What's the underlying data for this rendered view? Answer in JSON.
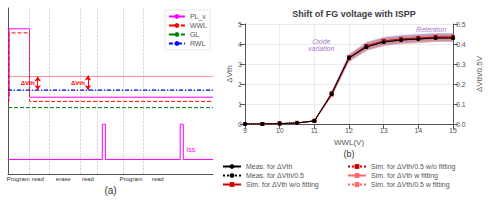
{
  "chart_data": [
    {
      "type": "line",
      "subtitle": "(a)",
      "xlim": [
        0,
        10
      ],
      "ylim": [
        -3.2,
        4.8
      ],
      "tick_labels": false,
      "grid": false,
      "legend": "upper right",
      "series": [
        {
          "name": "PL_v",
          "color": "magenta",
          "line_style": "solid",
          "x": [
            0,
            0.05,
            0.05,
            1.05,
            1.05,
            10
          ],
          "values": [
            0.5,
            0.5,
            3.8,
            3.8,
            0.5,
            0.5
          ]
        },
        {
          "name": "WWL",
          "color": "red",
          "line_style": "dashed",
          "x": [
            0,
            0.05,
            0.05,
            1.05,
            1.05,
            10
          ],
          "values": [
            0.3,
            0.3,
            3.6,
            3.6,
            0.3,
            0.3
          ]
        },
        {
          "name": "GL",
          "color": "green",
          "line_style": "dashed",
          "x": [
            0,
            10
          ],
          "values": [
            0.0,
            0.0
          ]
        },
        {
          "name": "RWL",
          "color": "blue",
          "line_style": "dashdot",
          "x": [
            0,
            10
          ],
          "values": [
            0.85,
            0.85
          ]
        },
        {
          "color": "magenta",
          "line_style": "solid",
          "x": [
            0,
            4.6,
            4.6,
            4.75,
            4.75,
            8.4,
            8.4,
            8.55,
            8.55,
            10
          ],
          "values": [
            -2.5,
            -2.5,
            -0.8,
            -0.8,
            -2.5,
            -2.5,
            -0.8,
            -0.8,
            -2.5,
            -2.5
          ]
        }
      ],
      "hlines": [
        {
          "value": 1.5,
          "color": "red",
          "line_style": "solid"
        },
        {
          "value": 0.85,
          "color": "green",
          "line_style": "dashed"
        },
        {
          "value": 0.85,
          "color": "blue",
          "line_style": "dashdot"
        }
      ],
      "vlines": [
        1.05,
        2.0,
        3.5,
        4.35,
        5.6,
        6.6
      ],
      "arrows": [
        {
          "x": 1.45,
          "y": [
            0.85,
            1.5
          ],
          "text": "ΔVth",
          "color": "red"
        },
        {
          "x": 3.9,
          "y": [
            0.85,
            1.55
          ],
          "text": "ΔVth",
          "color": "red"
        }
      ],
      "annotations": [
        {
          "text": "Program",
          "x": 0.5
        },
        {
          "text": "read",
          "x": 1.45
        },
        {
          "text": "erase",
          "x": 2.7
        },
        {
          "text": "read",
          "x": 3.9
        },
        {
          "text": "Program",
          "x": 6.0
        },
        {
          "text": "read",
          "x": 7.3
        },
        {
          "text": "Iss",
          "x": 8.7,
          "y": -2.2,
          "color": "magenta"
        }
      ]
    },
    {
      "type": "line",
      "title": "Shift of FG voltage with ISPP",
      "subtitle": "(b)",
      "xlabel": "WWL(V)",
      "ylabel": "ΔVth",
      "y2label": "ΔVth/0.5V",
      "x": [
        9,
        9.5,
        10,
        10.5,
        11,
        11.5,
        12,
        12.5,
        13,
        13.5,
        14,
        14.5,
        15
      ],
      "xlim": [
        9,
        15
      ],
      "xticks": [
        9,
        10,
        11,
        12,
        13,
        14,
        15
      ],
      "ylim": [
        0,
        5
      ],
      "yticks": [
        0,
        1,
        2,
        3,
        4,
        5
      ],
      "y2lim": [
        0,
        0.5
      ],
      "y2ticks": [
        {
          "value": 0,
          "label": "0.0"
        },
        {
          "value": 0.1,
          "label": "0.1"
        },
        {
          "value": 0.2,
          "label": "0.2"
        },
        {
          "value": 0.3,
          "label": "0.3"
        },
        {
          "value": 0.4,
          "label": "0.4"
        },
        {
          "value": 0.5,
          "label": "0.5"
        }
      ],
      "grid": true,
      "legend": "lower center",
      "series": [
        {
          "name": "Meas. for ΔVth",
          "color": "#000000",
          "line_style": "solid",
          "marker": "circle",
          "values": [
            0.0,
            0.0,
            0.02,
            0.05,
            0.15,
            1.5,
            3.3,
            3.85,
            4.1,
            4.2,
            4.25,
            4.3,
            4.3
          ]
        },
        {
          "name": "Meas. for ΔVth/0.5",
          "color": "#000000",
          "line_style": "dotted",
          "marker": "circle",
          "axis": "y2",
          "values": [
            0.0,
            0.0,
            0.002,
            0.005,
            0.015,
            0.15,
            0.33,
            0.385,
            0.41,
            0.42,
            0.425,
            0.43,
            0.43
          ]
        },
        {
          "name": "Sim. for ΔVth w/o fitting",
          "color": "#cc0000",
          "line_style": "solid",
          "marker": "square",
          "values": [
            0.0,
            0.0,
            0.02,
            0.055,
            0.16,
            1.525,
            3.325,
            3.9,
            4.15,
            4.25,
            4.3,
            4.35,
            4.35
          ],
          "band": {
            "color": "#8888cc",
            "lower": [
              0.0,
              0.0,
              0.02,
              0.05,
              0.14,
              1.4,
              3.15,
              3.7,
              3.95,
              4.05,
              4.1,
              4.15,
              4.15
            ],
            "upper": [
              0.0,
              0.0,
              0.02,
              0.06,
              0.18,
              1.65,
              3.5,
              4.1,
              4.35,
              4.45,
              4.5,
              4.55,
              4.55
            ]
          }
        },
        {
          "name": "Sim. for ΔVth/0.5 w/o fitting",
          "color": "#cc0000",
          "line_style": "dotted",
          "marker": "square",
          "axis": "y2",
          "values": [
            0.0,
            0.0,
            0.002,
            0.0055,
            0.016,
            0.1525,
            0.3325,
            0.39,
            0.415,
            0.425,
            0.43,
            0.435,
            0.435
          ],
          "band": {
            "color": "#8888cc",
            "lower": [
              0.0,
              0.0,
              0.002,
              0.005,
              0.014,
              0.14,
              0.315,
              0.37,
              0.395,
              0.405,
              0.41,
              0.415,
              0.415
            ],
            "upper": [
              0.0,
              0.0,
              0.002,
              0.006,
              0.018,
              0.165,
              0.35,
              0.41,
              0.435,
              0.445,
              0.45,
              0.455,
              0.455
            ]
          }
        },
        {
          "name": "Sim. for ΔVth w fitting",
          "color": "#ff6666",
          "line_style": "solid",
          "marker": "square",
          "values": [
            0.0,
            0.0,
            0.0175,
            0.05,
            0.15,
            1.475,
            3.275,
            3.85,
            4.1,
            4.2,
            4.25,
            4.3,
            4.3
          ],
          "band": {
            "color": "#cc6666",
            "lower": [
              0.0,
              0.0,
              0.015,
              0.045,
              0.13,
              1.35,
              3.1,
              3.65,
              3.9,
              4.0,
              4.05,
              4.1,
              4.1
            ],
            "upper": [
              0.0,
              0.0,
              0.02,
              0.055,
              0.17,
              1.6,
              3.45,
              4.05,
              4.3,
              4.4,
              4.45,
              4.5,
              4.5
            ]
          }
        },
        {
          "name": "Sim. for ΔVth/0.5 w fitting",
          "color": "#ff6666",
          "line_style": "dotted",
          "marker": "square",
          "axis": "y2",
          "values": [
            0.0,
            0.0,
            0.00175,
            0.005,
            0.015,
            0.1475,
            0.3275,
            0.385,
            0.41,
            0.42,
            0.425,
            0.43,
            0.43
          ],
          "band": {
            "color": "#cc6666",
            "lower": [
              0.0,
              0.0,
              0.0015,
              0.0045,
              0.013,
              0.135,
              0.31,
              0.365,
              0.39,
              0.4,
              0.405,
              0.41,
              0.41
            ],
            "upper": [
              0.0,
              0.0,
              0.002,
              0.0055,
              0.017,
              0.16,
              0.345,
              0.405,
              0.43,
              0.44,
              0.445,
              0.45,
              0.45
            ]
          }
        }
      ],
      "annotations": [
        {
          "text": "Oxide\nvariation",
          "x": 11.2,
          "y": 3.6,
          "color": "#aa77cc"
        },
        {
          "text": "Retention",
          "x": 14.8,
          "y": 4.55,
          "color": "#aa77cc"
        }
      ]
    }
  ]
}
